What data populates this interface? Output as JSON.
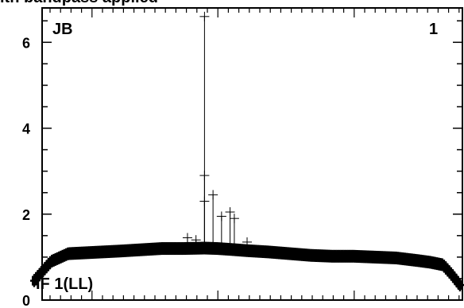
{
  "chart_data": {
    "type": "scatter",
    "title": "ith bandpass applied",
    "xlabel": "",
    "ylabel": "",
    "ylim": [
      0,
      6.8
    ],
    "yticks": [
      0,
      2,
      4,
      6
    ],
    "yticklabels": [
      "0",
      "2",
      "4",
      "6"
    ],
    "grid": false,
    "legend": "none",
    "marker": "plus",
    "corner_labels": {
      "left": "JB",
      "right": "1"
    },
    "annotation": "IF 1(LL)",
    "series": [
      {
        "x": [
          0,
          0.04,
          0.08,
          0.12,
          0.16,
          0.2,
          0.25,
          0.3,
          0.35,
          0.4,
          0.43,
          0.46,
          0.5,
          0.55,
          0.6,
          0.65,
          0.7,
          0.75,
          0.8,
          0.85,
          0.9,
          0.93,
          0.96,
          0.98,
          1.0
        ],
        "values": [
          0.45,
          0.9,
          1.08,
          1.1,
          1.12,
          1.14,
          1.17,
          1.2,
          1.2,
          1.21,
          1.2,
          1.18,
          1.15,
          1.12,
          1.08,
          1.04,
          1.02,
          1.02,
          1.0,
          0.98,
          0.92,
          0.88,
          0.82,
          0.6,
          0.35
        ]
      }
    ],
    "outliers": [
      {
        "x": 0.4,
        "y": 6.6
      },
      {
        "x": 0.4,
        "y": 2.9
      },
      {
        "x": 0.4,
        "y": 2.3
      },
      {
        "x": 0.42,
        "y": 2.45
      },
      {
        "x": 0.44,
        "y": 1.95
      },
      {
        "x": 0.46,
        "y": 2.05
      },
      {
        "x": 0.47,
        "y": 1.9
      },
      {
        "x": 0.36,
        "y": 1.45
      },
      {
        "x": 0.38,
        "y": 1.4
      },
      {
        "x": 0.5,
        "y": 1.35
      }
    ]
  }
}
